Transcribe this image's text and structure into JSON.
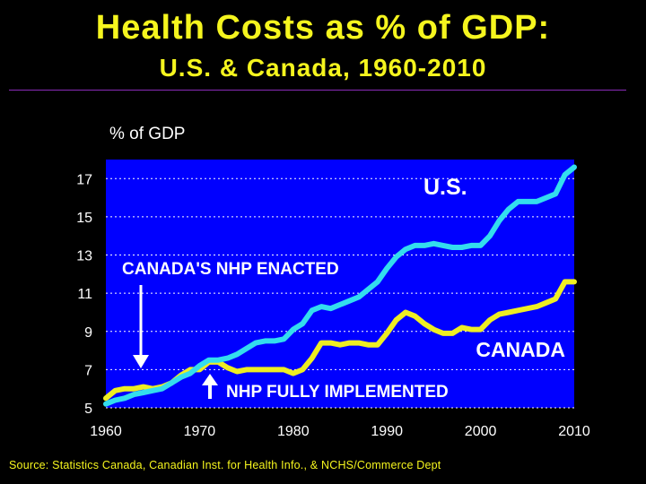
{
  "header": {
    "title": "Health Costs as % of GDP:",
    "subtitle": "U.S. & Canada, 1960-2010"
  },
  "source": "Source: Statistics Canada, Canadian Inst. for Health Info., & NCHS/Commerce Dept",
  "colors": {
    "background": "#000000",
    "plot_area": "#0000ff",
    "title": "#f5f51e",
    "us_line": "#33ddee",
    "canada_line": "#eeee22",
    "text": "#ffffff"
  },
  "chart_data": {
    "type": "line",
    "ylabel": "% of GDP",
    "xlabel": "",
    "xlim": [
      1960,
      2010
    ],
    "ylim": [
      5,
      18
    ],
    "grid": true,
    "x_ticks": [
      "1960",
      "1970",
      "1980",
      "1990",
      "2000",
      "2010"
    ],
    "y_ticks": [
      "5",
      "7",
      "9",
      "11",
      "13",
      "15",
      "17"
    ],
    "x": [
      1960,
      1961,
      1962,
      1963,
      1964,
      1965,
      1966,
      1967,
      1968,
      1969,
      1970,
      1971,
      1972,
      1973,
      1974,
      1975,
      1976,
      1977,
      1978,
      1979,
      1980,
      1981,
      1982,
      1983,
      1984,
      1985,
      1986,
      1987,
      1988,
      1989,
      1990,
      1991,
      1992,
      1993,
      1994,
      1995,
      1996,
      1997,
      1998,
      1999,
      2000,
      2001,
      2002,
      2003,
      2004,
      2005,
      2006,
      2007,
      2008,
      2009,
      2010
    ],
    "series": [
      {
        "name": "U.S.",
        "values": [
          5.2,
          5.4,
          5.5,
          5.7,
          5.8,
          5.9,
          6.0,
          6.3,
          6.6,
          6.8,
          7.2,
          7.5,
          7.5,
          7.6,
          7.8,
          8.1,
          8.4,
          8.5,
          8.5,
          8.6,
          9.1,
          9.4,
          10.1,
          10.3,
          10.2,
          10.4,
          10.6,
          10.8,
          11.2,
          11.6,
          12.3,
          12.9,
          13.3,
          13.5,
          13.5,
          13.6,
          13.5,
          13.4,
          13.4,
          13.5,
          13.5,
          14.0,
          14.8,
          15.4,
          15.8,
          15.8,
          15.8,
          16.0,
          16.2,
          17.2,
          17.6
        ]
      },
      {
        "name": "CANADA",
        "values": [
          5.5,
          5.9,
          6.0,
          6.0,
          6.1,
          6.0,
          6.1,
          6.3,
          6.7,
          7.0,
          7.0,
          7.4,
          7.4,
          7.1,
          6.9,
          7.0,
          7.0,
          7.0,
          7.0,
          7.0,
          6.8,
          7.0,
          7.6,
          8.4,
          8.4,
          8.3,
          8.4,
          8.4,
          8.3,
          8.3,
          8.9,
          9.6,
          10.0,
          9.8,
          9.4,
          9.1,
          8.9,
          8.9,
          9.2,
          9.1,
          9.1,
          9.6,
          9.9,
          10.0,
          10.1,
          10.2,
          10.3,
          10.5,
          10.7,
          11.6,
          11.6
        ]
      }
    ],
    "annotations": {
      "us_label": "U.S.",
      "canada_label": "CANADA",
      "enacted": "CANADA'S NHP ENACTED",
      "implemented": "NHP FULLY IMPLEMENTED"
    }
  }
}
